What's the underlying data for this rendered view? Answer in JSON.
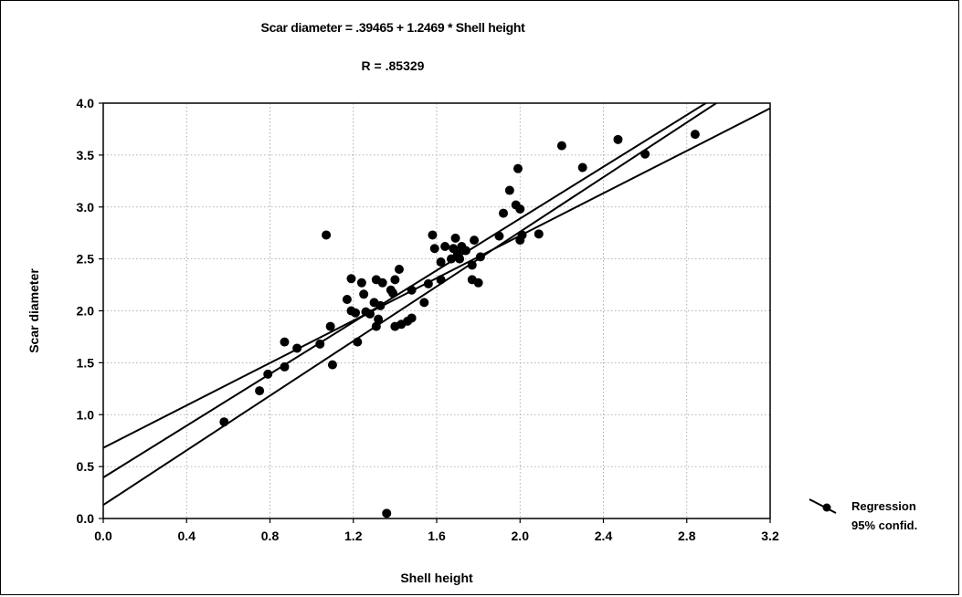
{
  "chart_data": {
    "type": "scatter",
    "title": "Scar diameter = .39465 + 1.2469 * Shell height",
    "subtitle": "R = .85329",
    "xlabel": "Shell height",
    "ylabel": "Scar diameter",
    "xlim": [
      0.0,
      3.2
    ],
    "ylim": [
      0.0,
      4.0
    ],
    "xticks": [
      "0.0",
      "0.4",
      "0.8",
      "1.2",
      "1.6",
      "2.0",
      "2.4",
      "2.8",
      "3.2"
    ],
    "yticks": [
      "0.0",
      "0.5",
      "1.0",
      "1.5",
      "2.0",
      "2.5",
      "3.0",
      "3.5",
      "4.0"
    ],
    "grid": true,
    "legend_position": "bottom-right",
    "legend": [
      "Regression",
      "95% confid."
    ],
    "regression": {
      "intercept": 0.39465,
      "slope": 1.2469
    },
    "confidence_band": {
      "upper": {
        "at_x0": 0.68,
        "at_x3_2": 3.95
      },
      "lower": {
        "at_x0": 0.13,
        "at_x3_2": 4.34
      }
    },
    "points": [
      [
        0.58,
        0.93
      ],
      [
        0.75,
        1.23
      ],
      [
        0.79,
        1.39
      ],
      [
        0.87,
        1.46
      ],
      [
        0.87,
        1.7
      ],
      [
        0.93,
        1.64
      ],
      [
        1.04,
        1.68
      ],
      [
        1.07,
        2.73
      ],
      [
        1.09,
        1.85
      ],
      [
        1.1,
        1.48
      ],
      [
        1.17,
        2.11
      ],
      [
        1.19,
        2.31
      ],
      [
        1.19,
        2.0
      ],
      [
        1.21,
        1.98
      ],
      [
        1.22,
        1.7
      ],
      [
        1.24,
        2.27
      ],
      [
        1.25,
        2.16
      ],
      [
        1.26,
        1.99
      ],
      [
        1.28,
        1.97
      ],
      [
        1.3,
        2.08
      ],
      [
        1.31,
        2.3
      ],
      [
        1.31,
        1.85
      ],
      [
        1.32,
        1.92
      ],
      [
        1.33,
        2.05
      ],
      [
        1.34,
        2.27
      ],
      [
        1.36,
        0.05
      ],
      [
        1.38,
        2.2
      ],
      [
        1.39,
        2.17
      ],
      [
        1.4,
        2.3
      ],
      [
        1.4,
        1.85
      ],
      [
        1.42,
        2.4
      ],
      [
        1.43,
        1.87
      ],
      [
        1.46,
        1.9
      ],
      [
        1.48,
        1.93
      ],
      [
        1.48,
        2.2
      ],
      [
        1.54,
        2.08
      ],
      [
        1.56,
        2.26
      ],
      [
        1.58,
        2.73
      ],
      [
        1.59,
        2.6
      ],
      [
        1.62,
        2.3
      ],
      [
        1.62,
        2.47
      ],
      [
        1.64,
        2.62
      ],
      [
        1.67,
        2.5
      ],
      [
        1.68,
        2.6
      ],
      [
        1.69,
        2.7
      ],
      [
        1.7,
        2.55
      ],
      [
        1.71,
        2.5
      ],
      [
        1.72,
        2.62
      ],
      [
        1.74,
        2.58
      ],
      [
        1.77,
        2.44
      ],
      [
        1.77,
        2.3
      ],
      [
        1.78,
        2.68
      ],
      [
        1.8,
        2.27
      ],
      [
        1.81,
        2.52
      ],
      [
        1.9,
        2.72
      ],
      [
        1.92,
        2.94
      ],
      [
        1.95,
        3.16
      ],
      [
        1.98,
        3.02
      ],
      [
        1.99,
        3.37
      ],
      [
        2.0,
        2.98
      ],
      [
        2.0,
        2.68
      ],
      [
        2.01,
        2.73
      ],
      [
        2.09,
        2.74
      ],
      [
        2.2,
        3.59
      ],
      [
        2.3,
        3.38
      ],
      [
        2.47,
        3.65
      ],
      [
        2.6,
        3.51
      ],
      [
        2.84,
        3.7
      ]
    ]
  }
}
